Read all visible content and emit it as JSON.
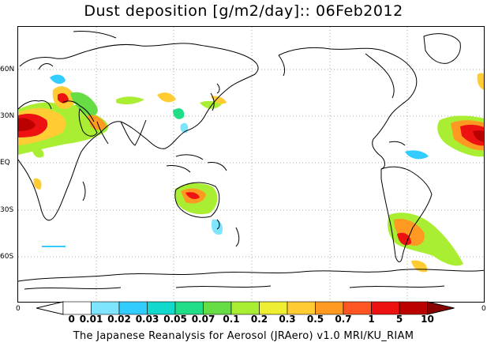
{
  "title": "Dust deposition [g/m2/day]:: 06Feb2012",
  "lat_labels": [
    "60N",
    "30N",
    "EQ",
    "30S",
    "60S"
  ],
  "lon_labels": [
    "0",
    "0"
  ],
  "colorbar": {
    "ticks": [
      "0",
      "0.01",
      "0.02",
      "0.03",
      "0.05",
      "0.07",
      "0.1",
      "0.2",
      "0.3",
      "0.5",
      "0.7",
      "1",
      "5",
      "10"
    ],
    "colors": [
      "#ffffff",
      "#7fe5ff",
      "#33ccff",
      "#11d9cc",
      "#22dd88",
      "#66dd44",
      "#aaee33",
      "#eeee33",
      "#ffcc33",
      "#ff9922",
      "#ff5522",
      "#ee1111",
      "#bb0000",
      "#880000"
    ],
    "arrow_colors": {
      "left": "#ffffff",
      "right": "#880000"
    }
  },
  "credit": "The Japanese Reanalysis for Aerosol (JRAero) v1.0 MRI/KU_RIAM"
}
